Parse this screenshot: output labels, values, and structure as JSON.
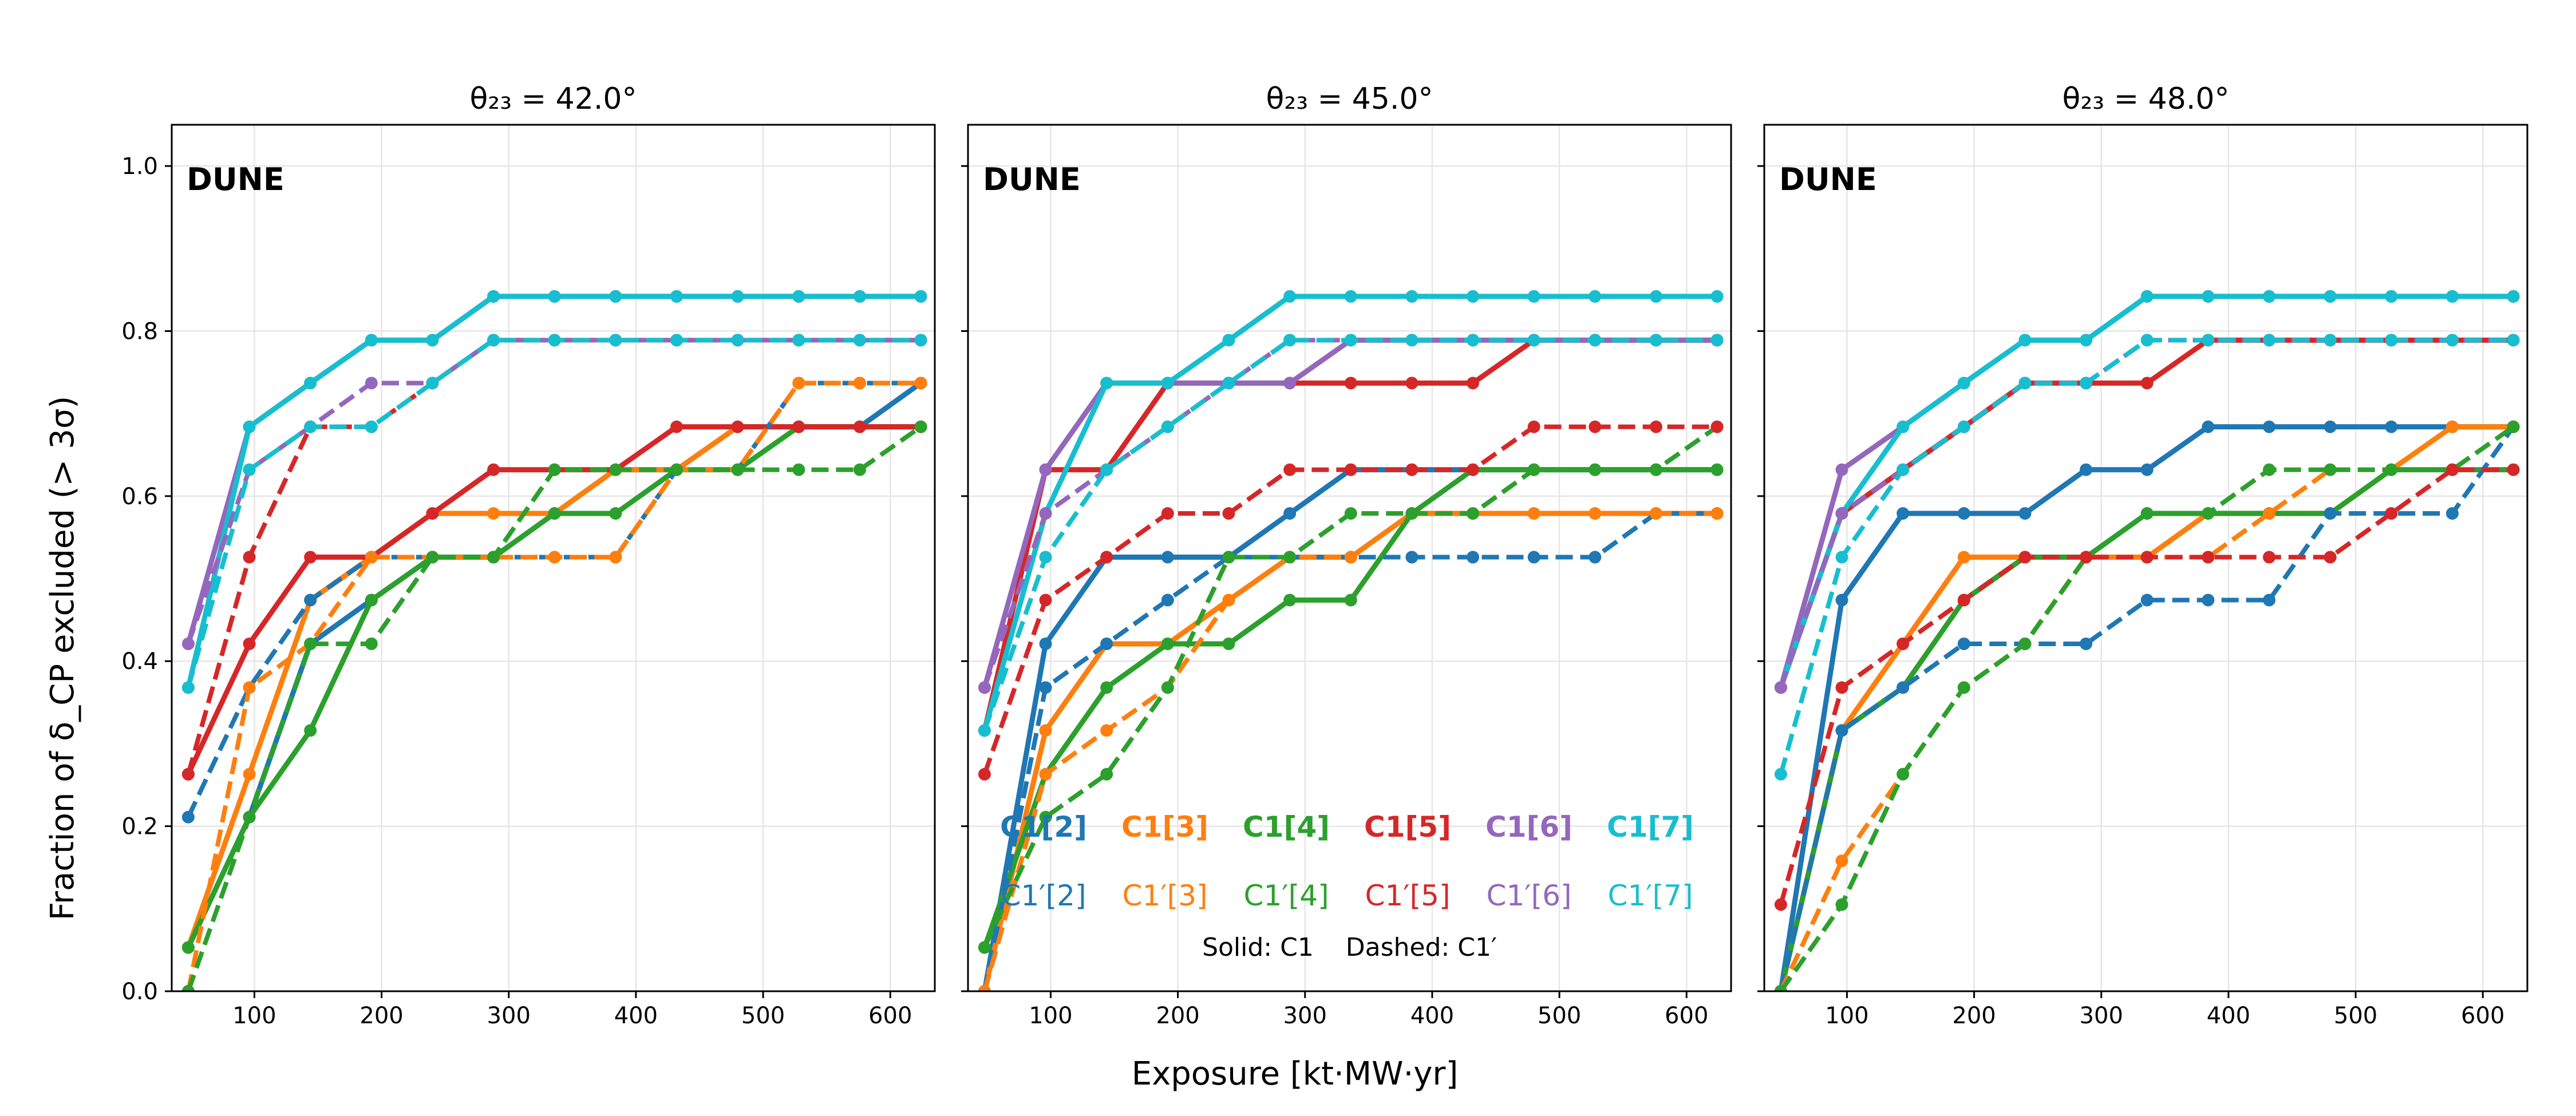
{
  "figure": {
    "ylabel": "Fraction of δ_CP excluded (> 3σ)",
    "xlabel": "Exposure [kt·MW·yr]"
  },
  "legend": {
    "solid_labels": [
      "C1[2]",
      "C1[3]",
      "C1[4]",
      "C1[5]",
      "C1[6]",
      "C1[7]"
    ],
    "dashed_labels": [
      "C1′[2]",
      "C1′[3]",
      "C1′[4]",
      "C1′[5]",
      "C1′[6]",
      "C1′[7]"
    ],
    "note": "Solid: C1    Dashed: C1′"
  },
  "colors": {
    "C[2]": "#1f77b4",
    "C[3]": "#ff7f0e",
    "C[4]": "#2ca02c",
    "C[5]": "#d62728",
    "C[6]": "#9467bd",
    "C[7]": "#17becf"
  },
  "chart_data": [
    {
      "type": "line",
      "title": "θ₂₃ = 42.0°",
      "annotation": "DUNE",
      "xlabel": "Exposure [kt·MW·yr]",
      "ylabel": "Fraction of δ_CP excluded (> 3σ)",
      "xlim": [
        35,
        635
      ],
      "ylim": [
        0,
        1.05
      ],
      "xticks": [
        "100",
        "200",
        "300",
        "400",
        "500",
        "600"
      ],
      "yticks": [
        "0.0",
        "0.2",
        "0.4",
        "0.6",
        "0.8",
        "1.0"
      ],
      "grid": true,
      "x": [
        48,
        96,
        144,
        192,
        240,
        288,
        336,
        384,
        432,
        480,
        528,
        576,
        624
      ],
      "series": [
        {
          "name": "C1[2]",
          "key": "C[2]",
          "style": "solid",
          "values": [
            0.053,
            0.211,
            0.421,
            0.474,
            0.526,
            0.526,
            0.579,
            0.632,
            0.632,
            0.684,
            0.684,
            0.684,
            0.737
          ]
        },
        {
          "name": "C1[3]",
          "key": "C[3]",
          "style": "solid",
          "values": [
            0.053,
            0.263,
            0.474,
            0.526,
            0.579,
            0.579,
            0.579,
            0.632,
            0.632,
            0.684,
            0.684,
            0.684,
            0.684
          ]
        },
        {
          "name": "C1[4]",
          "key": "C[4]",
          "style": "solid",
          "values": [
            0.053,
            0.211,
            0.316,
            0.474,
            0.526,
            0.526,
            0.579,
            0.579,
            0.632,
            0.632,
            0.684,
            0.684,
            0.684
          ]
        },
        {
          "name": "C1[5]",
          "key": "C[5]",
          "style": "solid",
          "values": [
            0.263,
            0.421,
            0.526,
            0.526,
            0.579,
            0.632,
            0.632,
            0.632,
            0.684,
            0.684,
            0.684,
            0.684,
            0.684
          ]
        },
        {
          "name": "C1[6]",
          "key": "C[6]",
          "style": "solid",
          "values": [
            0.421,
            0.684,
            0.737,
            0.789,
            0.789,
            0.842,
            0.842,
            0.842,
            0.842,
            0.842,
            0.842,
            0.842,
            0.842
          ]
        },
        {
          "name": "C1[7]",
          "key": "C[7]",
          "style": "solid",
          "values": [
            0.368,
            0.684,
            0.737,
            0.789,
            0.789,
            0.842,
            0.842,
            0.842,
            0.842,
            0.842,
            0.842,
            0.842,
            0.842
          ]
        },
        {
          "name": "C1′[2]",
          "key": "C[2]",
          "style": "dashed",
          "values": [
            0.211,
            0.368,
            0.474,
            0.526,
            0.526,
            0.526,
            0.526,
            0.526,
            0.632,
            0.632,
            0.737,
            0.737,
            0.737
          ]
        },
        {
          "name": "C1′[3]",
          "key": "C[3]",
          "style": "dashed",
          "values": [
            0.0,
            0.368,
            0.421,
            0.526,
            0.526,
            0.526,
            0.526,
            0.526,
            0.632,
            0.632,
            0.737,
            0.737,
            0.737
          ]
        },
        {
          "name": "C1′[4]",
          "key": "C[4]",
          "style": "dashed",
          "values": [
            0.0,
            0.211,
            0.421,
            0.421,
            0.526,
            0.526,
            0.632,
            0.632,
            0.632,
            0.632,
            0.632,
            0.632,
            0.684
          ]
        },
        {
          "name": "C1′[5]",
          "key": "C[5]",
          "style": "dashed",
          "values": [
            0.263,
            0.526,
            0.684,
            0.684,
            0.737,
            0.789,
            0.789,
            0.789,
            0.789,
            0.789,
            0.789,
            0.789,
            0.789
          ]
        },
        {
          "name": "C1′[6]",
          "key": "C[6]",
          "style": "dashed",
          "values": [
            0.421,
            0.632,
            0.684,
            0.737,
            0.737,
            0.789,
            0.789,
            0.789,
            0.789,
            0.789,
            0.789,
            0.789,
            0.789
          ]
        },
        {
          "name": "C1′[7]",
          "key": "C[7]",
          "style": "dashed",
          "values": [
            0.368,
            0.632,
            0.684,
            0.684,
            0.737,
            0.789,
            0.789,
            0.789,
            0.789,
            0.789,
            0.789,
            0.789,
            0.789
          ]
        }
      ]
    },
    {
      "type": "line",
      "title": "θ₂₃ = 45.0°",
      "annotation": "DUNE",
      "xlabel": "Exposure [kt·MW·yr]",
      "ylabel": "Fraction of δ_CP excluded (> 3σ)",
      "xlim": [
        35,
        635
      ],
      "ylim": [
        0,
        1.05
      ],
      "xticks": [
        "100",
        "200",
        "300",
        "400",
        "500",
        "600"
      ],
      "yticks": [
        "0.0",
        "0.2",
        "0.4",
        "0.6",
        "0.8",
        "1.0"
      ],
      "grid": true,
      "x": [
        48,
        96,
        144,
        192,
        240,
        288,
        336,
        384,
        432,
        480,
        528,
        576,
        624
      ],
      "series": [
        {
          "name": "C1[2]",
          "key": "C[2]",
          "style": "solid",
          "values": [
            0.0,
            0.421,
            0.526,
            0.526,
            0.526,
            0.579,
            0.632,
            0.632,
            0.632,
            0.632,
            0.632,
            0.632,
            0.632
          ]
        },
        {
          "name": "C1[3]",
          "key": "C[3]",
          "style": "solid",
          "values": [
            0.0,
            0.316,
            0.421,
            0.421,
            0.474,
            0.526,
            0.526,
            0.579,
            0.579,
            0.579,
            0.579,
            0.579,
            0.579
          ]
        },
        {
          "name": "C1[4]",
          "key": "C[4]",
          "style": "solid",
          "values": [
            0.053,
            0.263,
            0.368,
            0.421,
            0.421,
            0.474,
            0.474,
            0.579,
            0.632,
            0.632,
            0.632,
            0.632,
            0.632
          ]
        },
        {
          "name": "C1[5]",
          "key": "C[5]",
          "style": "solid",
          "values": [
            0.316,
            0.632,
            0.632,
            0.737,
            0.737,
            0.737,
            0.737,
            0.737,
            0.737,
            0.789,
            0.789,
            0.789,
            0.789
          ]
        },
        {
          "name": "C1[6]",
          "key": "C[6]",
          "style": "solid",
          "values": [
            0.368,
            0.632,
            0.737,
            0.737,
            0.737,
            0.737,
            0.789,
            0.789,
            0.789,
            0.789,
            0.789,
            0.789,
            0.789
          ]
        },
        {
          "name": "C1[7]",
          "key": "C[7]",
          "style": "solid",
          "values": [
            0.316,
            0.579,
            0.737,
            0.737,
            0.789,
            0.842,
            0.842,
            0.842,
            0.842,
            0.842,
            0.842,
            0.842,
            0.842
          ]
        },
        {
          "name": "C1′[2]",
          "key": "C[2]",
          "style": "dashed",
          "values": [
            0.0,
            0.368,
            0.421,
            0.474,
            0.526,
            0.526,
            0.526,
            0.526,
            0.526,
            0.526,
            0.526,
            0.579,
            0.579
          ]
        },
        {
          "name": "C1′[3]",
          "key": "C[3]",
          "style": "dashed",
          "values": [
            0.0,
            0.263,
            0.316,
            0.368,
            0.474,
            0.526,
            0.526,
            0.579,
            0.579,
            0.579,
            0.579,
            0.579,
            0.579
          ]
        },
        {
          "name": "C1′[4]",
          "key": "C[4]",
          "style": "dashed",
          "values": [
            0.053,
            0.211,
            0.263,
            0.368,
            0.526,
            0.526,
            0.579,
            0.579,
            0.579,
            0.632,
            0.632,
            0.632,
            0.684
          ]
        },
        {
          "name": "C1′[5]",
          "key": "C[5]",
          "style": "dashed",
          "values": [
            0.263,
            0.474,
            0.526,
            0.579,
            0.579,
            0.632,
            0.632,
            0.632,
            0.632,
            0.684,
            0.684,
            0.684,
            0.684
          ]
        },
        {
          "name": "C1′[6]",
          "key": "C[6]",
          "style": "dashed",
          "values": [
            0.368,
            0.579,
            0.632,
            0.684,
            0.737,
            0.789,
            0.789,
            0.789,
            0.789,
            0.789,
            0.789,
            0.789,
            0.789
          ]
        },
        {
          "name": "C1′[7]",
          "key": "C[7]",
          "style": "dashed",
          "values": [
            0.316,
            0.526,
            0.632,
            0.684,
            0.737,
            0.789,
            0.789,
            0.789,
            0.789,
            0.789,
            0.789,
            0.789,
            0.789
          ]
        }
      ]
    },
    {
      "type": "line",
      "title": "θ₂₃ = 48.0°",
      "annotation": "DUNE",
      "xlabel": "Exposure [kt·MW·yr]",
      "ylabel": "Fraction of δ_CP excluded (> 3σ)",
      "xlim": [
        35,
        635
      ],
      "ylim": [
        0,
        1.05
      ],
      "xticks": [
        "100",
        "200",
        "300",
        "400",
        "500",
        "600"
      ],
      "yticks": [
        "0.0",
        "0.2",
        "0.4",
        "0.6",
        "0.8",
        "1.0"
      ],
      "grid": true,
      "x": [
        48,
        96,
        144,
        192,
        240,
        288,
        336,
        384,
        432,
        480,
        528,
        576,
        624
      ],
      "series": [
        {
          "name": "C1[2]",
          "key": "C[2]",
          "style": "solid",
          "values": [
            0.0,
            0.474,
            0.579,
            0.579,
            0.579,
            0.632,
            0.632,
            0.684,
            0.684,
            0.684,
            0.684,
            0.684,
            0.684
          ]
        },
        {
          "name": "C1[3]",
          "key": "C[3]",
          "style": "solid",
          "values": [
            0.0,
            0.316,
            0.421,
            0.526,
            0.526,
            0.526,
            0.526,
            0.579,
            0.579,
            0.579,
            0.632,
            0.684,
            0.684
          ]
        },
        {
          "name": "C1[4]",
          "key": "C[4]",
          "style": "solid",
          "values": [
            0.0,
            0.316,
            0.368,
            0.474,
            0.526,
            0.526,
            0.579,
            0.579,
            0.579,
            0.579,
            0.632,
            0.632,
            0.632
          ]
        },
        {
          "name": "C1[5]",
          "key": "C[5]",
          "style": "solid",
          "values": [
            0.368,
            0.579,
            0.632,
            0.684,
            0.737,
            0.737,
            0.737,
            0.789,
            0.789,
            0.789,
            0.789,
            0.789,
            0.789
          ]
        },
        {
          "name": "C1[6]",
          "key": "C[6]",
          "style": "solid",
          "values": [
            0.368,
            0.632,
            0.684,
            0.737,
            0.789,
            0.789,
            0.842,
            0.842,
            0.842,
            0.842,
            0.842,
            0.842,
            0.842
          ]
        },
        {
          "name": "C1[7]",
          "key": "C[7]",
          "style": "solid",
          "values": [
            0.368,
            0.579,
            0.684,
            0.737,
            0.789,
            0.789,
            0.842,
            0.842,
            0.842,
            0.842,
            0.842,
            0.842,
            0.842
          ]
        },
        {
          "name": "C1′[2]",
          "key": "C[2]",
          "style": "dashed",
          "values": [
            0.0,
            0.316,
            0.368,
            0.421,
            0.421,
            0.421,
            0.474,
            0.474,
            0.474,
            0.579,
            0.579,
            0.579,
            0.684
          ]
        },
        {
          "name": "C1′[3]",
          "key": "C[3]",
          "style": "dashed",
          "values": [
            0.0,
            0.158,
            0.263,
            0.368,
            0.421,
            0.526,
            0.526,
            0.526,
            0.579,
            0.632,
            0.632,
            0.684,
            0.684
          ]
        },
        {
          "name": "C1′[4]",
          "key": "C[4]",
          "style": "dashed",
          "values": [
            0.0,
            0.105,
            0.263,
            0.368,
            0.421,
            0.526,
            0.579,
            0.579,
            0.632,
            0.632,
            0.632,
            0.632,
            0.684
          ]
        },
        {
          "name": "C1′[5]",
          "key": "C[5]",
          "style": "dashed",
          "values": [
            0.105,
            0.368,
            0.421,
            0.474,
            0.526,
            0.526,
            0.526,
            0.526,
            0.526,
            0.526,
            0.579,
            0.632,
            0.632
          ]
        },
        {
          "name": "C1′[6]",
          "key": "C[6]",
          "style": "dashed",
          "values": [
            0.368,
            0.579,
            0.632,
            0.684,
            0.737,
            0.737,
            0.789,
            0.789,
            0.789,
            0.789,
            0.789,
            0.789,
            0.789
          ]
        },
        {
          "name": "C1′[7]",
          "key": "C[7]",
          "style": "dashed",
          "values": [
            0.263,
            0.526,
            0.632,
            0.684,
            0.737,
            0.737,
            0.789,
            0.789,
            0.789,
            0.789,
            0.789,
            0.789,
            0.789
          ]
        }
      ]
    }
  ]
}
